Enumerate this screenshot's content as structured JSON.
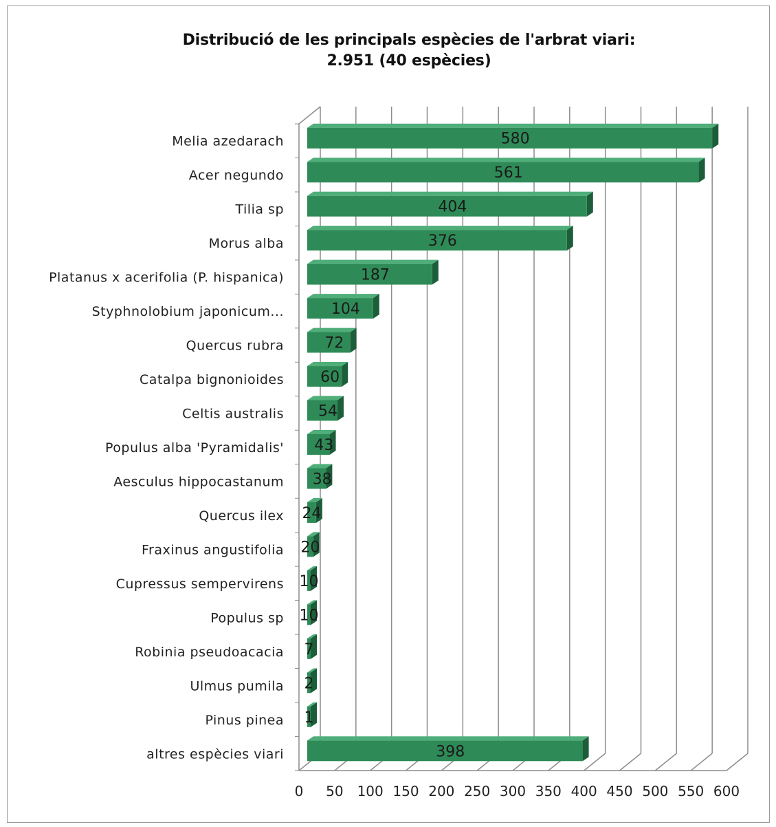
{
  "chart_data": {
    "type": "bar",
    "orientation": "horizontal",
    "title": "Distribució de les principals espècies de l'arbrat viari:",
    "subtitle": "2.951 (40 espècies)",
    "xlabel": "",
    "ylabel": "",
    "xlim": [
      0,
      600
    ],
    "x_ticks": [
      "0",
      "50",
      "100",
      "150",
      "200",
      "250",
      "300",
      "350",
      "400",
      "450",
      "500",
      "550",
      "600"
    ],
    "grid": true,
    "legend": "none",
    "bar_color": "#2e8b57",
    "categories": [
      "Melia azedarach",
      "Acer negundo",
      "Tilia sp",
      "Morus alba",
      "Platanus x acerifolia (P. hispanica)",
      "Styphnolobium japonicum...",
      "Quercus rubra",
      "Catalpa bignonioides",
      "Celtis australis",
      "Populus alba 'Pyramidalis'",
      "Aesculus hippocastanum",
      "Quercus ilex",
      "Fraxinus angustifolia",
      "Cupressus sempervirens",
      "Populus sp",
      "Robinia pseudoacacia",
      "Ulmus pumila",
      "Pinus pinea",
      "altres espècies viari"
    ],
    "values": [
      580,
      561,
      404,
      376,
      187,
      104,
      72,
      60,
      54,
      43,
      38,
      24,
      20,
      10,
      10,
      7,
      2,
      1,
      398
    ]
  }
}
